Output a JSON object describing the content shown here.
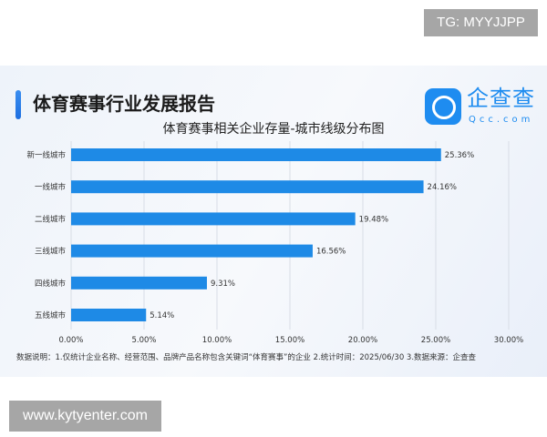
{
  "watermark_top": "TG: MYYJJPP",
  "watermark_bottom": "www.kytyenter.com",
  "header": {
    "title": "体育赛事行业发展报告",
    "logo_text": "企查查",
    "logo_sub": "Qcc.com"
  },
  "note": "数据说明：1.仅统计企业名称、经营范围、品牌产品名称包含关键词“体育赛事”的企业  2.统计时间：2025/06/30   3.数据来源：企查查",
  "colors": {
    "bar": "#1e8ae6",
    "accent": "#1e8cf0"
  },
  "chart_data": {
    "type": "bar",
    "orientation": "horizontal",
    "title": "体育赛事相关企业存量-城市线级分布图",
    "categories": [
      "新一线城市",
      "一线城市",
      "二线城市",
      "三线城市",
      "四线城市",
      "五线城市"
    ],
    "values": [
      25.36,
      24.16,
      19.48,
      16.56,
      9.31,
      5.14
    ],
    "data_labels": [
      "25.36%",
      "24.16%",
      "19.48%",
      "16.56%",
      "9.31%",
      "5.14%"
    ],
    "xlim": [
      0,
      30
    ],
    "xticks": [
      "0.00%",
      "5.00%",
      "10.00%",
      "15.00%",
      "20.00%",
      "25.00%",
      "30.00%"
    ],
    "grid": "vertical"
  }
}
